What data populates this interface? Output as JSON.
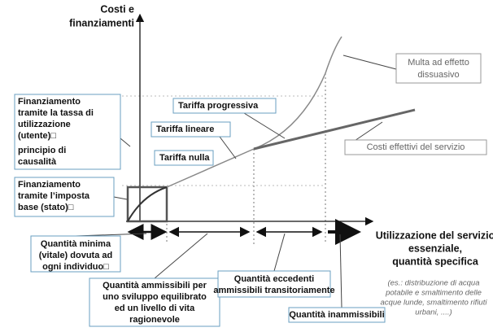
{
  "labels": [
    {
      "lines": [
        "Costi e",
        "finanziamenti"
      ]
    },
    {
      "lines": [
        "Multa ad effetto",
        "dissuasivo"
      ]
    },
    {
      "lines": [
        "Tariffa progressiva"
      ]
    },
    {
      "lines": [
        "Tariffa lineare"
      ]
    },
    {
      "lines": [
        "Tariffa nulla"
      ]
    },
    {
      "lines": [
        "Costi effettivi del servizio"
      ]
    },
    {
      "lines": [
        "Finanziamento",
        "tramite la tassa di",
        "utilizzazione",
        "(utente)□",
        "principio di",
        "causalità"
      ]
    },
    {
      "lines": [
        "Finanziamento",
        "tramite l’imposta",
        "base (stato)□"
      ]
    },
    {
      "lines": [
        "Utilizzazione del servizio",
        "essenziale,",
        "quantità specifica"
      ]
    },
    {
      "lines": [
        "(es.: distribuzione di acqua",
        "potabile e smaltimento delle",
        "acque lunde, smaltimento rifiuti",
        "urbani, ....)"
      ]
    },
    {
      "lines": [
        "Quantità minima",
        "(vitale) dovuta ad",
        "ogni individuo□"
      ]
    },
    {
      "lines": [
        "Quantità ammissibili per",
        "uno sviluppo equilibrato",
        "ed un livello di vita",
        "ragionevole"
      ]
    },
    {
      "lines": [
        "Quantità eccedenti",
        "ammissibili transitoriamente"
      ]
    },
    {
      "lines": [
        "Quantità inammissibili"
      ]
    }
  ]
}
